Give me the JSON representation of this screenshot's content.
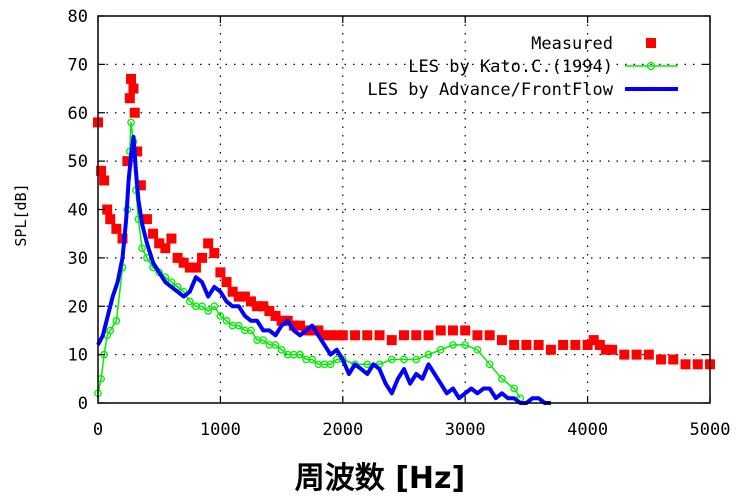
{
  "chart_data": {
    "type": "line",
    "xlabel": "周波数 [Hz]",
    "ylabel": "SPL[dB]",
    "xlim": [
      0,
      5000
    ],
    "ylim": [
      0,
      80
    ],
    "x_ticks": [
      "0",
      "1000",
      "2000",
      "3000",
      "4000",
      "5000"
    ],
    "y_ticks": [
      "0",
      "10",
      "20",
      "30",
      "40",
      "50",
      "60",
      "70",
      "80"
    ],
    "grid": "dotted",
    "legend_position": "top-right",
    "series": [
      {
        "name": "Measured",
        "style": "squares",
        "color": "#ff0000",
        "points": [
          [
            0,
            58
          ],
          [
            25,
            48
          ],
          [
            50,
            46
          ],
          [
            75,
            40
          ],
          [
            100,
            38
          ],
          [
            150,
            36
          ],
          [
            200,
            34
          ],
          [
            240,
            50
          ],
          [
            260,
            63
          ],
          [
            270,
            67
          ],
          [
            290,
            65
          ],
          [
            300,
            60
          ],
          [
            320,
            52
          ],
          [
            350,
            45
          ],
          [
            400,
            38
          ],
          [
            450,
            35
          ],
          [
            500,
            33
          ],
          [
            550,
            32
          ],
          [
            600,
            34
          ],
          [
            650,
            30
          ],
          [
            700,
            29
          ],
          [
            750,
            28
          ],
          [
            800,
            28
          ],
          [
            850,
            30
          ],
          [
            900,
            33
          ],
          [
            950,
            31
          ],
          [
            1000,
            27
          ],
          [
            1050,
            25
          ],
          [
            1100,
            23
          ],
          [
            1150,
            22
          ],
          [
            1200,
            22
          ],
          [
            1250,
            21
          ],
          [
            1300,
            20
          ],
          [
            1350,
            20
          ],
          [
            1400,
            19
          ],
          [
            1450,
            18
          ],
          [
            1500,
            17
          ],
          [
            1550,
            17
          ],
          [
            1600,
            16
          ],
          [
            1650,
            16
          ],
          [
            1700,
            15
          ],
          [
            1750,
            15
          ],
          [
            1800,
            15
          ],
          [
            1850,
            14
          ],
          [
            1900,
            14
          ],
          [
            1950,
            14
          ],
          [
            2000,
            14
          ],
          [
            2100,
            14
          ],
          [
            2200,
            14
          ],
          [
            2300,
            14
          ],
          [
            2400,
            13
          ],
          [
            2500,
            14
          ],
          [
            2600,
            14
          ],
          [
            2700,
            14
          ],
          [
            2800,
            15
          ],
          [
            2900,
            15
          ],
          [
            3000,
            15
          ],
          [
            3100,
            14
          ],
          [
            3200,
            14
          ],
          [
            3300,
            13
          ],
          [
            3400,
            12
          ],
          [
            3500,
            12
          ],
          [
            3600,
            12
          ],
          [
            3700,
            11
          ],
          [
            3800,
            12
          ],
          [
            3900,
            12
          ],
          [
            4000,
            12
          ],
          [
            4050,
            13
          ],
          [
            4100,
            12
          ],
          [
            4150,
            11
          ],
          [
            4200,
            11
          ],
          [
            4300,
            10
          ],
          [
            4400,
            10
          ],
          [
            4500,
            10
          ],
          [
            4600,
            9
          ],
          [
            4700,
            9
          ],
          [
            4800,
            8
          ],
          [
            4900,
            8
          ],
          [
            5000,
            8
          ]
        ]
      },
      {
        "name": "LES by Kato.C.(1994)",
        "style": "line-circles",
        "color": "#00ee00",
        "points": [
          [
            0,
            2
          ],
          [
            25,
            5
          ],
          [
            50,
            10
          ],
          [
            75,
            14
          ],
          [
            100,
            15
          ],
          [
            150,
            17
          ],
          [
            200,
            28
          ],
          [
            240,
            40
          ],
          [
            260,
            52
          ],
          [
            270,
            58
          ],
          [
            290,
            54
          ],
          [
            310,
            44
          ],
          [
            330,
            38
          ],
          [
            360,
            32
          ],
          [
            400,
            30
          ],
          [
            450,
            28
          ],
          [
            500,
            27
          ],
          [
            550,
            26
          ],
          [
            600,
            25
          ],
          [
            650,
            24
          ],
          [
            700,
            23
          ],
          [
            750,
            21
          ],
          [
            800,
            20
          ],
          [
            850,
            20
          ],
          [
            900,
            19
          ],
          [
            950,
            20
          ],
          [
            1000,
            18
          ],
          [
            1050,
            17
          ],
          [
            1100,
            16
          ],
          [
            1150,
            16
          ],
          [
            1200,
            15
          ],
          [
            1250,
            15
          ],
          [
            1300,
            13
          ],
          [
            1350,
            13
          ],
          [
            1400,
            12
          ],
          [
            1450,
            12
          ],
          [
            1500,
            11
          ],
          [
            1550,
            10
          ],
          [
            1600,
            10
          ],
          [
            1650,
            10
          ],
          [
            1700,
            9
          ],
          [
            1750,
            9
          ],
          [
            1800,
            8
          ],
          [
            1850,
            8
          ],
          [
            1900,
            8
          ],
          [
            1950,
            9
          ],
          [
            2000,
            9
          ],
          [
            2100,
            8
          ],
          [
            2200,
            8
          ],
          [
            2300,
            8
          ],
          [
            2400,
            9
          ],
          [
            2500,
            9
          ],
          [
            2600,
            9
          ],
          [
            2700,
            10
          ],
          [
            2800,
            11
          ],
          [
            2900,
            12
          ],
          [
            3000,
            12
          ],
          [
            3100,
            11
          ],
          [
            3200,
            8
          ],
          [
            3300,
            5
          ],
          [
            3400,
            3
          ],
          [
            3450,
            1
          ]
        ]
      },
      {
        "name": "LES by Advance/FrontFlow",
        "style": "thick-line",
        "color": "#0000ff",
        "points": [
          [
            0,
            12
          ],
          [
            40,
            14
          ],
          [
            80,
            18
          ],
          [
            120,
            22
          ],
          [
            160,
            25
          ],
          [
            200,
            30
          ],
          [
            230,
            38
          ],
          [
            250,
            46
          ],
          [
            270,
            51
          ],
          [
            290,
            55
          ],
          [
            310,
            48
          ],
          [
            330,
            42
          ],
          [
            360,
            37
          ],
          [
            400,
            33
          ],
          [
            450,
            29
          ],
          [
            500,
            27
          ],
          [
            550,
            25
          ],
          [
            600,
            24
          ],
          [
            650,
            23
          ],
          [
            700,
            22
          ],
          [
            750,
            23
          ],
          [
            800,
            26
          ],
          [
            850,
            25
          ],
          [
            900,
            22
          ],
          [
            950,
            24
          ],
          [
            1000,
            23
          ],
          [
            1050,
            21
          ],
          [
            1100,
            20
          ],
          [
            1150,
            20
          ],
          [
            1200,
            18
          ],
          [
            1250,
            17
          ],
          [
            1300,
            17
          ],
          [
            1350,
            15
          ],
          [
            1400,
            15
          ],
          [
            1450,
            14
          ],
          [
            1500,
            16
          ],
          [
            1550,
            17
          ],
          [
            1600,
            15
          ],
          [
            1650,
            14
          ],
          [
            1700,
            15
          ],
          [
            1750,
            16
          ],
          [
            1800,
            14
          ],
          [
            1850,
            12
          ],
          [
            1900,
            10
          ],
          [
            1950,
            11
          ],
          [
            2000,
            9
          ],
          [
            2050,
            6
          ],
          [
            2100,
            8
          ],
          [
            2150,
            7
          ],
          [
            2200,
            6
          ],
          [
            2250,
            8
          ],
          [
            2300,
            7
          ],
          [
            2350,
            4
          ],
          [
            2400,
            2
          ],
          [
            2450,
            5
          ],
          [
            2500,
            7
          ],
          [
            2550,
            4
          ],
          [
            2600,
            6
          ],
          [
            2650,
            5
          ],
          [
            2700,
            8
          ],
          [
            2750,
            6
          ],
          [
            2800,
            4
          ],
          [
            2850,
            2
          ],
          [
            2900,
            3
          ],
          [
            2950,
            1
          ],
          [
            3000,
            2
          ],
          [
            3050,
            3
          ],
          [
            3100,
            2
          ],
          [
            3150,
            3
          ],
          [
            3200,
            3
          ],
          [
            3250,
            1
          ],
          [
            3300,
            2
          ],
          [
            3350,
            1
          ],
          [
            3400,
            1
          ],
          [
            3450,
            0
          ],
          [
            3500,
            0
          ],
          [
            3550,
            1
          ],
          [
            3600,
            1
          ],
          [
            3650,
            0
          ],
          [
            3700,
            0
          ]
        ]
      }
    ]
  }
}
